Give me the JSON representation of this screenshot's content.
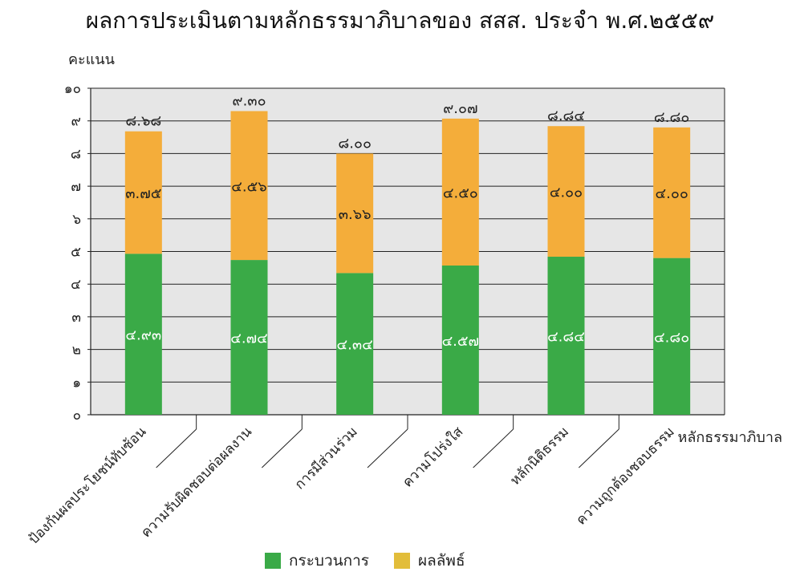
{
  "chart_data": {
    "type": "bar",
    "stacked": true,
    "title": "ผลการประเมินตามหลักธรรมาภิบาลของ สสส. ประจำ พ.ศ.๒๕๕๙",
    "ylabel": "คะแนน",
    "xlabel": "หลักธรรมาภิบาล",
    "ylim": [
      0,
      10
    ],
    "yticks": [
      {
        "value": 0,
        "label": "๐"
      },
      {
        "value": 1,
        "label": "๑"
      },
      {
        "value": 2,
        "label": "๒"
      },
      {
        "value": 3,
        "label": "๓"
      },
      {
        "value": 4,
        "label": "๔"
      },
      {
        "value": 5,
        "label": "๕"
      },
      {
        "value": 6,
        "label": "๖"
      },
      {
        "value": 7,
        "label": "๗"
      },
      {
        "value": 8,
        "label": "๘"
      },
      {
        "value": 9,
        "label": "๙"
      },
      {
        "value": 10,
        "label": "๑๐"
      }
    ],
    "grid": true,
    "legend_position": "bottom",
    "categories": [
      "ป้องกันผลประโยชน์ทับซ้อน",
      "ความรับผิดชอบต่อผลงาน",
      "การมีส่วนร่วม",
      "ความโปร่งใส",
      "หลักนิติธรรม",
      "ความถูกต้องชอบธรรม"
    ],
    "series": [
      {
        "name": "กระบวนการ",
        "color": "#3aaa47",
        "values": [
          4.93,
          4.74,
          4.34,
          4.57,
          4.84,
          4.8
        ],
        "labels": [
          "๔.๙๓",
          "๔.๗๔",
          "๔.๓๔",
          "๔.๕๗",
          "๔.๘๔",
          "๔.๘๐"
        ]
      },
      {
        "name": "ผลลัพธ์",
        "color": "#f4ad3a",
        "values": [
          3.75,
          4.56,
          3.66,
          4.5,
          4.0,
          4.0
        ],
        "labels": [
          "๓.๗๕",
          "๔.๕๖",
          "๓.๖๖",
          "๔.๕๐",
          "๔.๐๐",
          "๔.๐๐"
        ]
      }
    ],
    "totals": [
      8.68,
      9.3,
      8.0,
      9.07,
      8.84,
      8.8
    ],
    "total_labels": [
      "๘.๖๘",
      "๙.๓๐",
      "๘.๐๐",
      "๙.๐๗",
      "๘.๘๔",
      "๘.๘๐"
    ],
    "legend_colors": [
      "#3aaa47",
      "#e2bd3a"
    ]
  }
}
